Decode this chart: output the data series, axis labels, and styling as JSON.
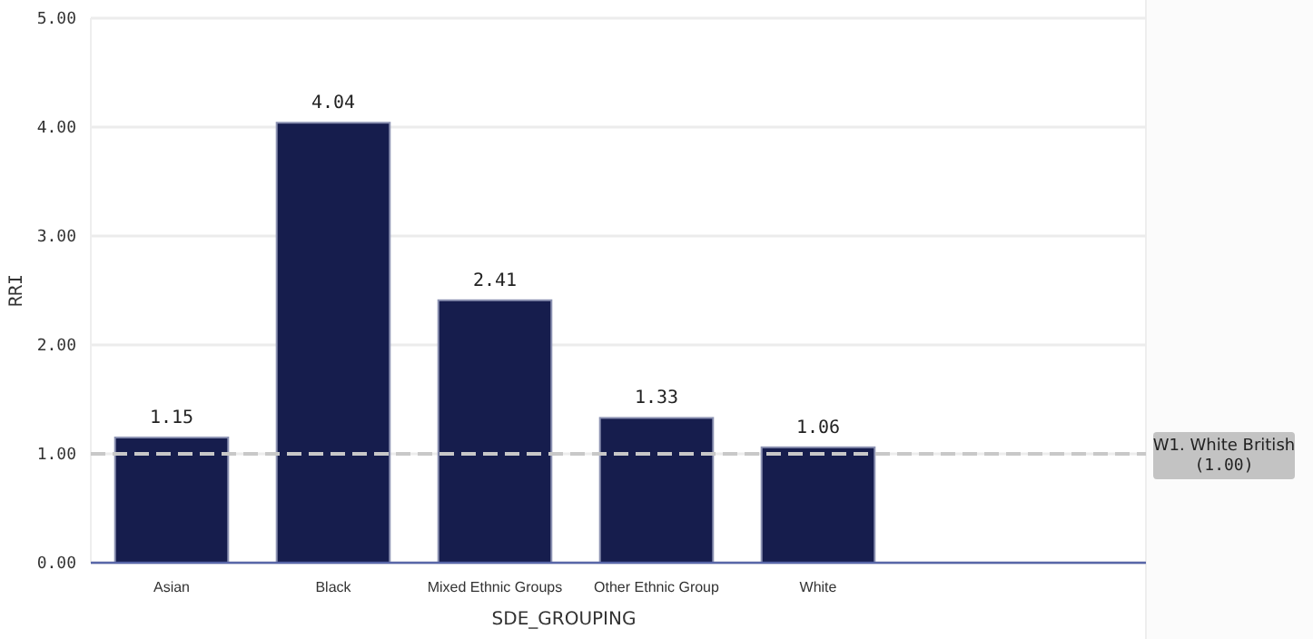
{
  "chart_data": {
    "type": "bar",
    "xlabel": "SDE_GROUPING",
    "ylabel": "RRI",
    "categories": [
      "Asian",
      "Black",
      "Mixed Ethnic Groups",
      "Other Ethnic Group",
      "White"
    ],
    "values": [
      1.15,
      4.04,
      2.41,
      1.33,
      1.06
    ],
    "color": "#161d4d",
    "ylim": [
      0,
      5
    ],
    "yticks": [
      {
        "value": 0,
        "label": "0.00"
      },
      {
        "value": 1,
        "label": "1.00"
      },
      {
        "value": 2,
        "label": "2.00"
      },
      {
        "value": 3,
        "label": "3.00"
      },
      {
        "value": 4,
        "label": "4.00"
      },
      {
        "value": 5,
        "label": "5.00"
      }
    ],
    "grid": "y",
    "data_labels": true,
    "ref_lines": [
      {
        "axis": "y",
        "value": 1,
        "label": "W1. White British (1.00)",
        "color": "#c8c8c8",
        "line_style": "dashed"
      }
    ]
  }
}
